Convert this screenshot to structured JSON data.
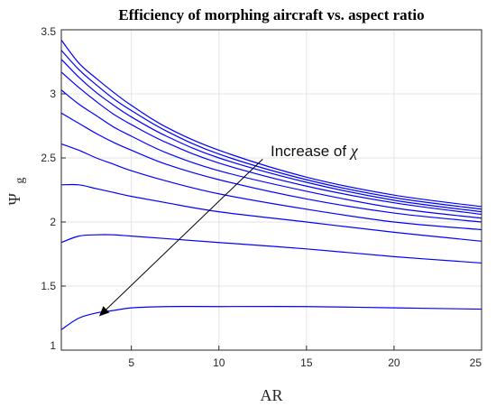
{
  "chart_data": {
    "type": "line",
    "title": "Efficiency of morphing aircraft vs. aspect ratio",
    "xlabel": "AR",
    "ylabel": {
      "main": "Ψ",
      "subscript": "g"
    },
    "xlim": [
      1,
      25
    ],
    "ylim": [
      1,
      3.5
    ],
    "xticks": [
      5,
      10,
      15,
      20,
      25
    ],
    "yticks": [
      1,
      1.5,
      2,
      2.5,
      3,
      3.5
    ],
    "grid": true,
    "line_color": "#0000ff",
    "annotation": {
      "text": "Increase of ",
      "symbol": "χ",
      "arrow_from": [
        12.5,
        2.49
      ],
      "arrow_to": [
        3.2,
        1.27
      ]
    },
    "series": [
      {
        "x": [
          1,
          2,
          3,
          4,
          5,
          7,
          10,
          15,
          20,
          25
        ],
        "y": [
          1.16,
          1.25,
          1.29,
          1.31,
          1.33,
          1.34,
          1.34,
          1.34,
          1.33,
          1.32
        ]
      },
      {
        "x": [
          1,
          2,
          3,
          4,
          5,
          7,
          10,
          15,
          20,
          25
        ],
        "y": [
          1.84,
          1.89,
          1.9,
          1.9,
          1.89,
          1.87,
          1.84,
          1.79,
          1.73,
          1.68
        ]
      },
      {
        "x": [
          1,
          2,
          3,
          4,
          5,
          7,
          10,
          15,
          20,
          25
        ],
        "y": [
          2.29,
          2.29,
          2.26,
          2.23,
          2.2,
          2.15,
          2.08,
          2.0,
          1.92,
          1.85
        ]
      },
      {
        "x": [
          1,
          2,
          3,
          4,
          5,
          7,
          10,
          15,
          20,
          25
        ],
        "y": [
          2.61,
          2.56,
          2.5,
          2.45,
          2.4,
          2.32,
          2.22,
          2.1,
          2.0,
          1.94
        ]
      },
      {
        "x": [
          1,
          2,
          3,
          4,
          5,
          7,
          10,
          15,
          20,
          25
        ],
        "y": [
          2.85,
          2.77,
          2.69,
          2.62,
          2.56,
          2.45,
          2.33,
          2.18,
          2.07,
          2.0
        ]
      },
      {
        "x": [
          1,
          2,
          3,
          4,
          5,
          7,
          10,
          15,
          20,
          25
        ],
        "y": [
          3.03,
          2.92,
          2.83,
          2.74,
          2.67,
          2.54,
          2.4,
          2.24,
          2.11,
          2.03
        ]
      },
      {
        "x": [
          1,
          2,
          3,
          4,
          5,
          7,
          10,
          15,
          20,
          25
        ],
        "y": [
          3.17,
          3.05,
          2.94,
          2.84,
          2.76,
          2.62,
          2.46,
          2.28,
          2.15,
          2.06
        ]
      },
      {
        "x": [
          1,
          2,
          3,
          4,
          5,
          7,
          10,
          15,
          20,
          25
        ],
        "y": [
          3.27,
          3.13,
          3.01,
          2.91,
          2.82,
          2.67,
          2.5,
          2.31,
          2.17,
          2.08
        ]
      },
      {
        "x": [
          1,
          2,
          3,
          4,
          5,
          7,
          10,
          15,
          20,
          25
        ],
        "y": [
          3.34,
          3.19,
          3.07,
          2.96,
          2.87,
          2.71,
          2.53,
          2.33,
          2.19,
          2.1
        ]
      },
      {
        "x": [
          1,
          2,
          3,
          4,
          5,
          7,
          10,
          15,
          20,
          25
        ],
        "y": [
          3.42,
          3.24,
          3.12,
          3.01,
          2.91,
          2.74,
          2.56,
          2.35,
          2.21,
          2.12
        ]
      }
    ]
  }
}
